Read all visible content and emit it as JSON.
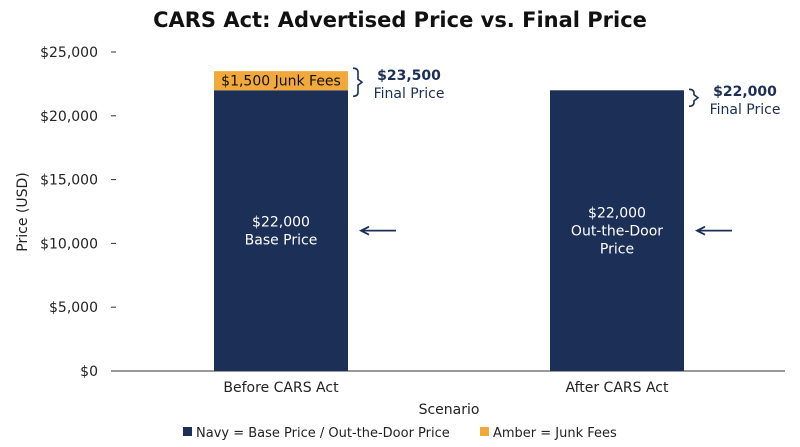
{
  "chart_data": {
    "type": "bar",
    "stacked": true,
    "title": "CARS Act: Advertised Price vs. Final Price",
    "xlabel": "Scenario",
    "ylabel": "Price (USD)",
    "ylim": [
      0,
      25000
    ],
    "yticks": [
      "$0",
      "$5,000",
      "$10,000",
      "$15,000",
      "$20,000",
      "$25,000"
    ],
    "ytick_values": [
      0,
      5000,
      10000,
      15000,
      20000,
      25000
    ],
    "grid": false,
    "categories": [
      "Before CARS Act",
      "After CARS Act"
    ],
    "series": [
      {
        "key": "navy",
        "values": [
          22000,
          22000
        ],
        "color": "#1c2f57",
        "labels": [
          [
            "$22,000",
            "Base Price"
          ],
          [
            "$22,000",
            "Out-the-Door",
            "Price"
          ]
        ]
      },
      {
        "key": "amber",
        "values": [
          1500,
          0
        ],
        "color": "#f2a93b",
        "labels": [
          [
            "$1,500 Junk Fees"
          ],
          []
        ]
      }
    ],
    "totals": [
      {
        "value_label": "$23,500",
        "note": "Final Price",
        "value": 23500
      },
      {
        "value_label": "$22,000",
        "note": "Final Price",
        "value": 22000
      }
    ],
    "legend": {
      "position": "bottom",
      "entries": [
        {
          "label": "Navy = Base Price / Out-the-Door Price",
          "color": "#1c2f57"
        },
        {
          "label": "Amber = Junk Fees",
          "color": "#f2a93b"
        }
      ]
    },
    "arrow_color": "#1c2f57"
  }
}
